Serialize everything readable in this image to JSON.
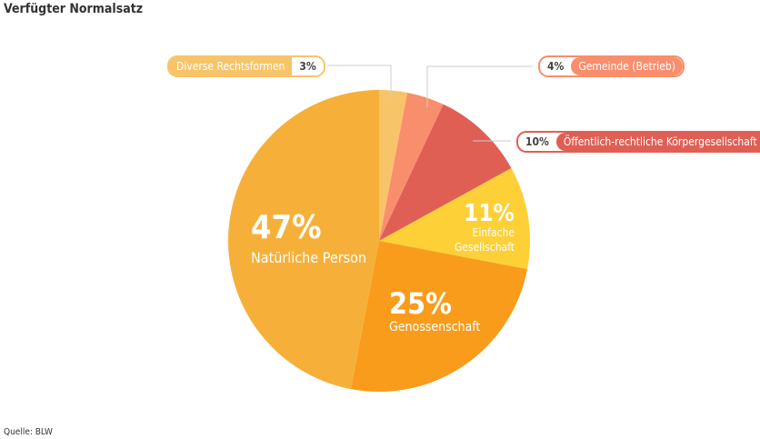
{
  "title": "Verfügter Normalsatz",
  "source": "Quelle: BLW",
  "chart_data": {
    "type": "pie",
    "title": "Verfügter Normalsatz",
    "start": "top, clockwise",
    "slices": [
      {
        "label": "Diverse Rechtsformen",
        "value": 3,
        "pct": "3%",
        "color": "#f8c469"
      },
      {
        "label": "Gemeinde (Betrieb)",
        "value": 4,
        "pct": "4%",
        "color": "#f98e6d"
      },
      {
        "label": "Öffentlich-rechtliche Körpergesellschaft",
        "value": 10,
        "pct": "10%",
        "color": "#df5f55"
      },
      {
        "label": "Einfache Gesellschaft",
        "label_lines": [
          "Einfache",
          "Gesellschaft"
        ],
        "value": 11,
        "pct": "11%",
        "color": "#fdd037"
      },
      {
        "label": "Genossenschaft",
        "value": 25,
        "pct": "25%",
        "color": "#f99c1c"
      },
      {
        "label": "Natürliche Person",
        "value": 47,
        "pct": "47%",
        "color": "#f6b03a"
      }
    ]
  }
}
